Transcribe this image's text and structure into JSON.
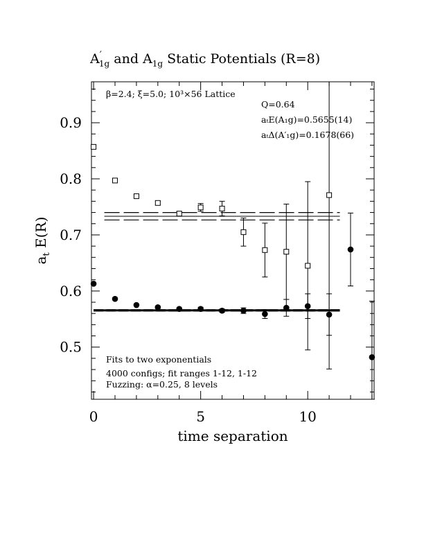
{
  "chart_data": {
    "type": "scatter",
    "title": "A′₁g and A₁g Static Potentials (R=8)",
    "title_parts": {
      "a": "A",
      "a_prime": "′",
      "sub": "1g",
      "mid": " and ",
      "b": "A",
      "sub2": "1g",
      "tail": " Static Potentials (R=8)"
    },
    "xlabel": "time separation",
    "ylabel": "a",
    "ylabel_sub": "t",
    "ylabel_tail": " E(R)",
    "xlim": [
      -0.1,
      13.1
    ],
    "ylim": [
      0.407,
      0.973
    ],
    "xticks": [
      0,
      5,
      10
    ],
    "yticks": [
      0.5,
      0.6,
      0.7,
      0.8,
      0.9
    ],
    "ytick_labels": [
      "0.5",
      "0.6",
      "0.7",
      "0.8",
      "0.9"
    ],
    "xtick_labels": [
      "0",
      "5",
      "10"
    ],
    "annotations": {
      "lattice": "β=2.4; ξ=5.0; 10³×56 Lattice",
      "q": "Q=0.64",
      "energy": "aₜE(A₁g)=0.5655(14)",
      "gap": "aₜΔ(A′₁g)=0.1678(66)",
      "fits": "Fits to two exponentials",
      "configs": "4000 configs; fit ranges 1-12, 1-12",
      "fuzzing": "Fuzzing: α=0.25, 8 levels"
    },
    "series": [
      {
        "marker": "filled-circle",
        "x": [
          0,
          1,
          2,
          3,
          4,
          5,
          6,
          7,
          8,
          9,
          10,
          11,
          12,
          13
        ],
        "y": [
          0.613,
          0.586,
          0.575,
          0.571,
          0.568,
          0.568,
          0.565,
          0.565,
          0.559,
          0.57,
          0.573,
          0.558,
          0.674,
          0.482
        ],
        "yerr": [
          0.001,
          0.001,
          0.001,
          0.002,
          0.002,
          0.003,
          0.003,
          0.005,
          0.008,
          0.015,
          0.022,
          0.037,
          0.065,
          0.1
        ]
      },
      {
        "marker": "open-square",
        "x": [
          0,
          1,
          2,
          3,
          4,
          5,
          6,
          7,
          8,
          9,
          10,
          11
        ],
        "y": [
          0.857,
          0.797,
          0.769,
          0.757,
          0.738,
          0.749,
          0.747,
          0.705,
          0.673,
          0.67,
          0.645,
          0.771
        ],
        "yerr": [
          0.001,
          0.002,
          0.002,
          0.003,
          0.004,
          0.007,
          0.013,
          0.025,
          0.048,
          0.085,
          0.15,
          0.31
        ]
      }
    ],
    "fit_lines": [
      {
        "name": "A1g",
        "y_center": 0.5655,
        "y_err": 0.0014,
        "x_range": [
          0,
          11.5
        ],
        "style": "thick"
      },
      {
        "name": "A'1g",
        "y_center": 0.7333,
        "y_err": 0.0066,
        "x_range": [
          0.5,
          11.5
        ],
        "style": "dashed"
      }
    ]
  }
}
